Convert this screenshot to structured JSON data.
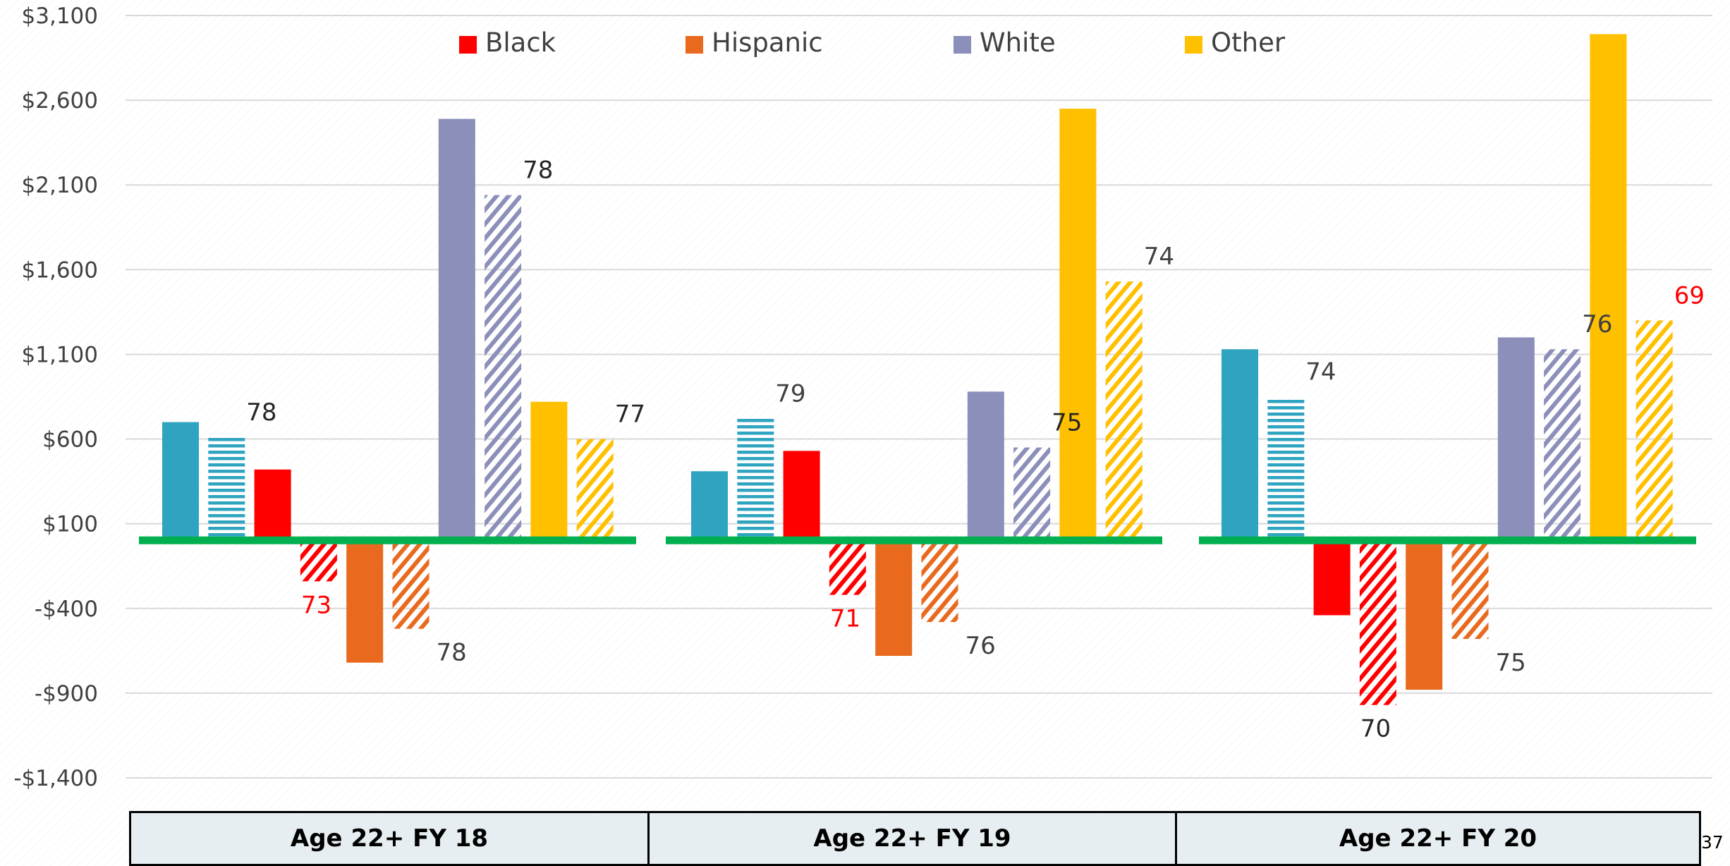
{
  "chart_data": {
    "type": "bar",
    "yaxis": {
      "min": -1400,
      "max": 3100,
      "ticks": [
        3100,
        2600,
        2100,
        1600,
        1100,
        600,
        100,
        -400,
        -900,
        -1400
      ],
      "tick_labels": [
        "$3,100",
        "$2,600",
        "$2,100",
        "$1,600",
        "$1,100",
        "$600",
        "$100",
        "-$400",
        "-$900",
        "-$1,400"
      ],
      "grid": true
    },
    "baseline": 0,
    "categories": [
      "Age 22+ FY 18",
      "Age 22+ FY 19",
      "Age 22+ FY 20"
    ],
    "legend": {
      "placement": "top",
      "items": [
        "Black",
        "Hispanic",
        "White",
        "Other"
      ]
    },
    "series": [
      {
        "color": "#2ea4c0",
        "pattern": "solid",
        "values": [
          700,
          410,
          1130
        ],
        "labels": [
          "",
          "",
          ""
        ],
        "label_colors": [
          "",
          "",
          ""
        ]
      },
      {
        "color": "#2ea4c0",
        "pattern": "horizontal",
        "values": [
          610,
          720,
          850
        ],
        "labels": [
          "78",
          "79",
          "74"
        ],
        "label_colors": [
          "#262626",
          "#404040",
          "#404040"
        ]
      },
      {
        "name": "Black",
        "color": "#ff0000",
        "pattern": "solid",
        "values": [
          420,
          530,
          -440
        ],
        "labels": [
          "",
          "",
          ""
        ],
        "label_colors": [
          "",
          "",
          ""
        ]
      },
      {
        "color": "#ff0000",
        "pattern": "diagonal",
        "values": [
          -240,
          -320,
          -970
        ],
        "labels": [
          "73",
          "71",
          "70"
        ],
        "label_colors": [
          "#ff0000",
          "#ff0000",
          "#262626"
        ]
      },
      {
        "name": "Hispanic",
        "color": "#e96a1e",
        "pattern": "solid",
        "values": [
          -720,
          -680,
          -880
        ],
        "labels": [
          "",
          "",
          ""
        ],
        "label_colors": [
          "",
          "",
          ""
        ]
      },
      {
        "color": "#e96a1e",
        "pattern": "diagonal",
        "values": [
          -520,
          -480,
          -580
        ],
        "labels": [
          "78",
          "76",
          "75"
        ],
        "label_colors": [
          "#404040",
          "#404040",
          "#404040"
        ]
      },
      {
        "name": "White",
        "color": "#8b8fba",
        "pattern": "solid",
        "values": [
          2490,
          880,
          1200
        ],
        "labels": [
          "",
          "",
          ""
        ],
        "label_colors": [
          "",
          "",
          ""
        ]
      },
      {
        "color": "#8b8fba",
        "pattern": "diagonal",
        "values": [
          2040,
          550,
          1130
        ],
        "labels": [
          "78",
          "75",
          "76"
        ],
        "label_colors": [
          "#262626",
          "#262626",
          "#404040"
        ]
      },
      {
        "name": "Other",
        "color": "#ffc000",
        "pattern": "solid",
        "values": [
          820,
          2550,
          2990
        ],
        "labels": [
          "",
          "",
          ""
        ],
        "label_colors": [
          "",
          "",
          ""
        ]
      },
      {
        "color": "#ffc000",
        "pattern": "diagonal",
        "values": [
          600,
          1530,
          1300
        ],
        "labels": [
          "77",
          "74",
          "69"
        ],
        "label_colors": [
          "#262626",
          "#404040",
          "#ff0000"
        ]
      }
    ],
    "baseline_line_color": "#00b050"
  },
  "page_number": "37"
}
